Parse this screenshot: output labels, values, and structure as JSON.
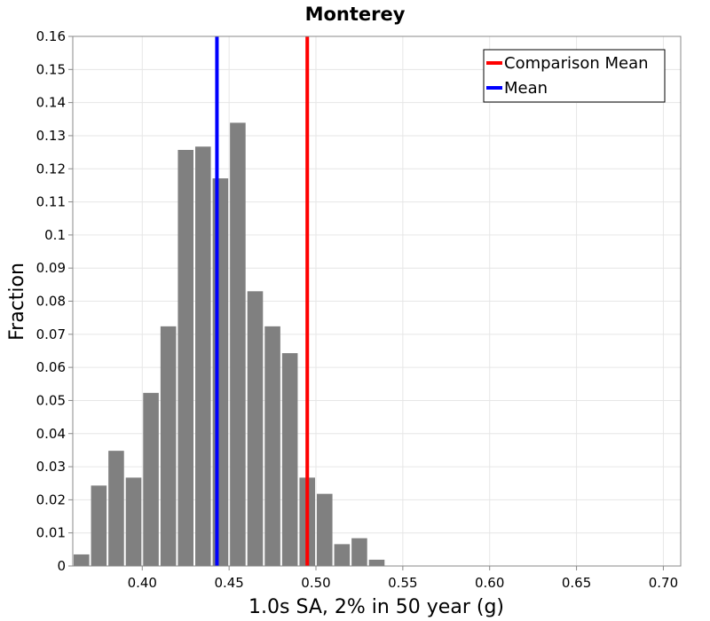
{
  "chart_data": {
    "type": "bar",
    "title": "Monterey",
    "xlabel": "1.0s SA, 2% in 50 year (g)",
    "ylabel": "Fraction",
    "xlim": [
      0.36,
      0.71
    ],
    "ylim": [
      0,
      0.16
    ],
    "grid": true,
    "legend_position": "top-right",
    "bin_width": 0.01,
    "xticks": [
      {
        "value": 0.4,
        "label": "0.40"
      },
      {
        "value": 0.45,
        "label": "0.45"
      },
      {
        "value": 0.5,
        "label": "0.50"
      },
      {
        "value": 0.55,
        "label": "0.55"
      },
      {
        "value": 0.6,
        "label": "0.60"
      },
      {
        "value": 0.65,
        "label": "0.65"
      },
      {
        "value": 0.7,
        "label": "0.70"
      }
    ],
    "yticks": [
      {
        "value": 0,
        "label": "0"
      },
      {
        "value": 0.01,
        "label": "0.01"
      },
      {
        "value": 0.02,
        "label": "0.02"
      },
      {
        "value": 0.03,
        "label": "0.03"
      },
      {
        "value": 0.04,
        "label": "0.04"
      },
      {
        "value": 0.05,
        "label": "0.05"
      },
      {
        "value": 0.06,
        "label": "0.06"
      },
      {
        "value": 0.07,
        "label": "0.07"
      },
      {
        "value": 0.08,
        "label": "0.08"
      },
      {
        "value": 0.09,
        "label": "0.09"
      },
      {
        "value": 0.1,
        "label": "0.1"
      },
      {
        "value": 0.11,
        "label": "0.11"
      },
      {
        "value": 0.12,
        "label": "0.12"
      },
      {
        "value": 0.13,
        "label": "0.13"
      },
      {
        "value": 0.14,
        "label": "0.14"
      },
      {
        "value": 0.15,
        "label": "0.15"
      },
      {
        "value": 0.16,
        "label": "0.16"
      }
    ],
    "histogram": {
      "color": "#808080",
      "bin_centers": [
        0.365,
        0.375,
        0.385,
        0.395,
        0.405,
        0.415,
        0.425,
        0.435,
        0.445,
        0.455,
        0.465,
        0.475,
        0.485,
        0.495,
        0.505,
        0.515,
        0.525,
        0.535
      ],
      "values": [
        0.0035,
        0.0243,
        0.0348,
        0.0267,
        0.0523,
        0.0724,
        0.1257,
        0.1267,
        0.1171,
        0.1339,
        0.083,
        0.0724,
        0.0643,
        0.0267,
        0.0218,
        0.0066,
        0.0084,
        0.0019
      ]
    },
    "series": [
      {
        "name": "Comparison Mean",
        "x": 0.495,
        "color": "#ff0000"
      },
      {
        "name": "Mean",
        "x": 0.443,
        "color": "#0000ff"
      }
    ]
  }
}
